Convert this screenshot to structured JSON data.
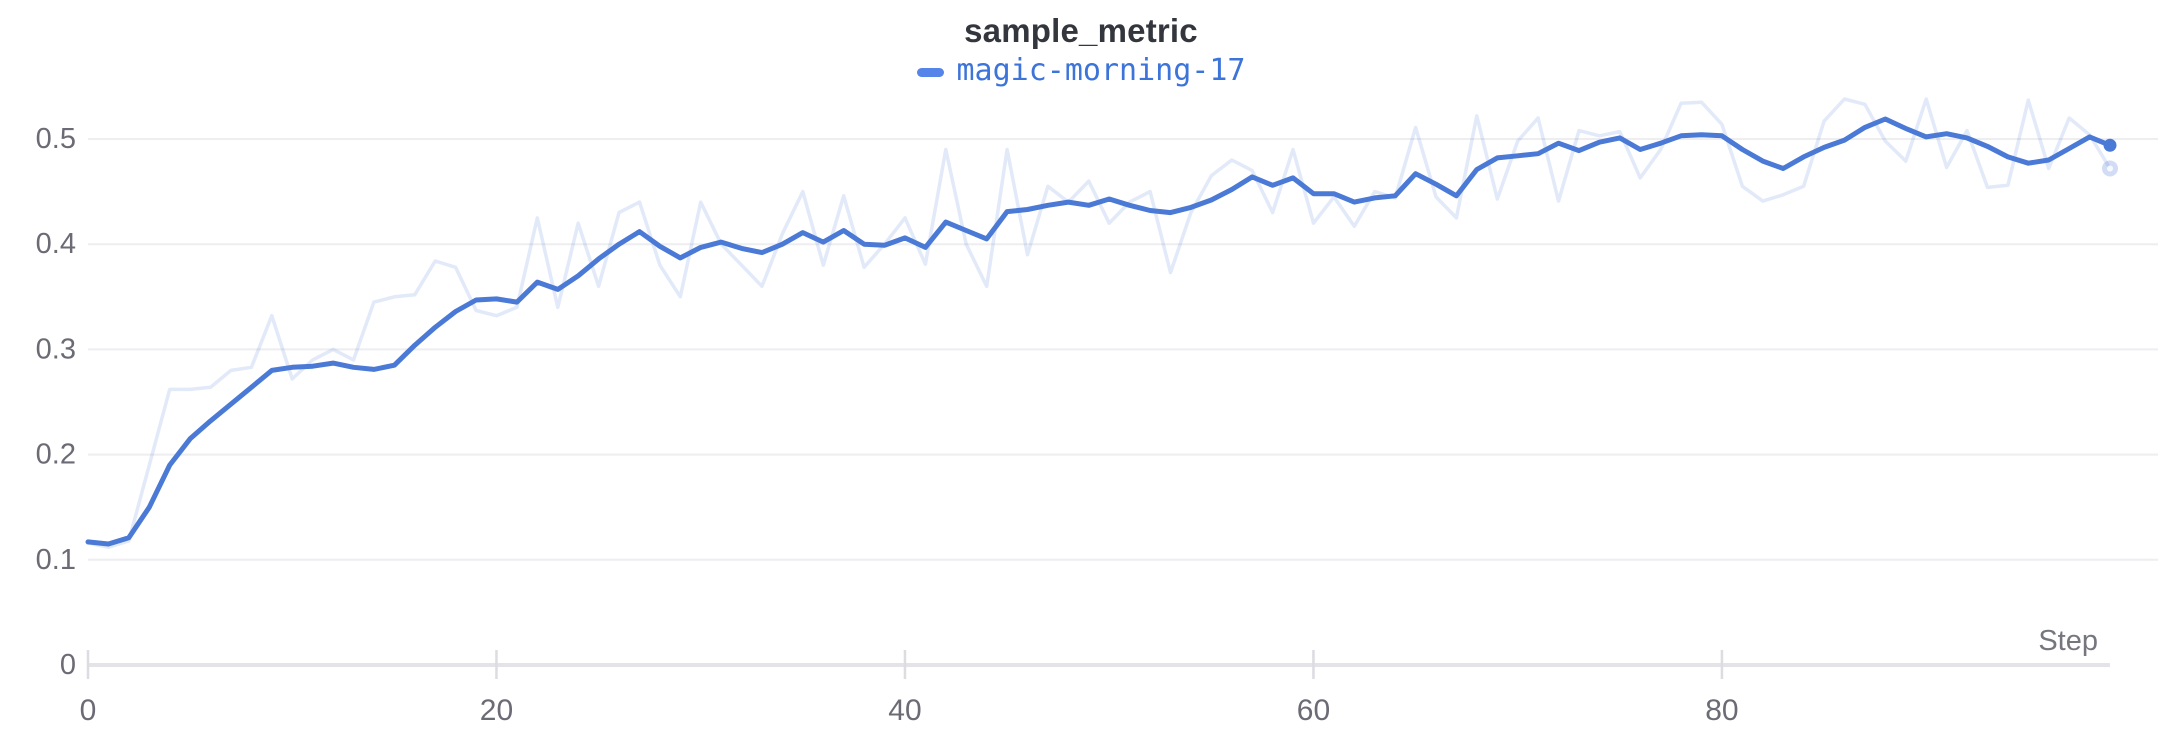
{
  "chart_data": {
    "type": "line",
    "title": "sample_metric",
    "xlabel": "Step",
    "ylabel": "",
    "x_start": 0,
    "x_step": 1,
    "xlim": [
      0,
      99
    ],
    "ylim": [
      0,
      0.53
    ],
    "x_ticks": [
      0,
      20,
      40,
      60,
      80
    ],
    "y_ticks": [
      0,
      0.1,
      0.2,
      0.3,
      0.4,
      0.5
    ],
    "y_tick_labels": [
      "0",
      "0.1",
      "0.2",
      "0.3",
      "0.4",
      "0.5"
    ],
    "grid": "horizontal",
    "legend_position": "top-center",
    "end_markers": true,
    "colors": {
      "line": "#4a79d6",
      "raw_line": "#4a79d6",
      "legend_swatch": "#5585e8",
      "legend_text": "#3c74d9",
      "title_text": "#33373d",
      "tick_text": "#6b6b76",
      "axis_label_text": "#76767f",
      "gridline": "#eeeef1",
      "axis_line": "#e3e3e8",
      "tick_mark": "#dcdce1",
      "background": "#ffffff"
    },
    "series": [
      {
        "name": "magic-morning-17",
        "role": "smoothed",
        "opacity": 1,
        "values": [
          0.117,
          0.115,
          0.121,
          0.15,
          0.19,
          0.215,
          0.232,
          0.248,
          0.264,
          0.28,
          0.283,
          0.284,
          0.287,
          0.283,
          0.281,
          0.285,
          0.304,
          0.321,
          0.336,
          0.347,
          0.348,
          0.345,
          0.364,
          0.357,
          0.37,
          0.386,
          0.4,
          0.412,
          0.398,
          0.387,
          0.397,
          0.402,
          0.396,
          0.392,
          0.4,
          0.411,
          0.402,
          0.413,
          0.4,
          0.399,
          0.406,
          0.397,
          0.421,
          0.413,
          0.405,
          0.431,
          0.433,
          0.437,
          0.44,
          0.437,
          0.443,
          0.437,
          0.432,
          0.43,
          0.435,
          0.442,
          0.452,
          0.464,
          0.456,
          0.463,
          0.448,
          0.448,
          0.44,
          0.444,
          0.446,
          0.467,
          0.457,
          0.446,
          0.471,
          0.482,
          0.484,
          0.486,
          0.496,
          0.489,
          0.497,
          0.501,
          0.49,
          0.496,
          0.503,
          0.504,
          0.503,
          0.49,
          0.479,
          0.472,
          0.483,
          0.492,
          0.499,
          0.511,
          0.519,
          0.51,
          0.502,
          0.505,
          0.501,
          0.493,
          0.483,
          0.477,
          0.48,
          0.491,
          0.502,
          0.494
        ]
      },
      {
        "name": "magic-morning-17",
        "role": "raw-unsmoothed",
        "opacity": 0.16,
        "values": [
          0.116,
          0.112,
          0.118,
          0.19,
          0.262,
          0.262,
          0.264,
          0.28,
          0.283,
          0.332,
          0.272,
          0.29,
          0.3,
          0.29,
          0.345,
          0.35,
          0.352,
          0.384,
          0.378,
          0.337,
          0.332,
          0.34,
          0.425,
          0.34,
          0.42,
          0.36,
          0.43,
          0.44,
          0.38,
          0.35,
          0.44,
          0.4,
          0.38,
          0.36,
          0.41,
          0.45,
          0.38,
          0.446,
          0.378,
          0.4,
          0.425,
          0.381,
          0.49,
          0.4,
          0.36,
          0.49,
          0.39,
          0.455,
          0.44,
          0.46,
          0.42,
          0.44,
          0.45,
          0.373,
          0.43,
          0.465,
          0.48,
          0.47,
          0.43,
          0.49,
          0.42,
          0.445,
          0.417,
          0.45,
          0.444,
          0.511,
          0.445,
          0.425,
          0.522,
          0.443,
          0.498,
          0.52,
          0.441,
          0.508,
          0.503,
          0.507,
          0.463,
          0.49,
          0.534,
          0.535,
          0.514,
          0.455,
          0.441,
          0.447,
          0.455,
          0.517,
          0.538,
          0.533,
          0.498,
          0.479,
          0.538,
          0.473,
          0.508,
          0.454,
          0.456,
          0.537,
          0.472,
          0.52,
          0.504,
          0.472
        ]
      }
    ]
  }
}
